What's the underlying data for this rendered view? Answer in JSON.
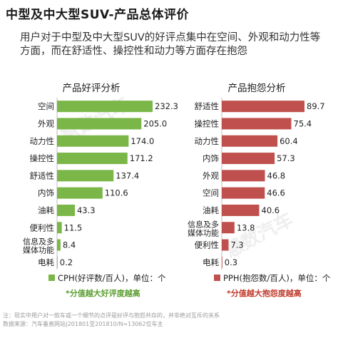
{
  "title": "中型及中大型SUV-产品总体评价",
  "subtitle": "用户对于中型及中大型SUV的好评点集中在空间、外观和动力性等方面，而在舒适性、操控性和动力等方面存在抱怨",
  "watermark": "慧数汽车",
  "footer": {
    "note": "注：现实中用户对一款车或一个细节的点评是好评与抱怨共存的，并非绝对互斥的关系",
    "source": "数据来源：汽车垂直网站|201801至201810/N=13062位车主"
  },
  "colors": {
    "praise": "#7ab648",
    "complaint": "#c0504d",
    "praise_note": "#5a9e2f",
    "complaint_note": "#c0392b"
  },
  "chart_data": [
    {
      "type": "bar",
      "orientation": "horizontal",
      "title": "产品好评分析",
      "categories": [
        "空间",
        "外观",
        "动力性",
        "操控性",
        "舒适性",
        "内饰",
        "油耗",
        "便利性",
        "信息及多媒体功能",
        "电耗"
      ],
      "values": [
        232.3,
        205.0,
        174.0,
        171.2,
        137.4,
        110.6,
        43.3,
        11.5,
        8.4,
        0.2
      ],
      "value_labels": [
        "232.3",
        "205.0",
        "174.0",
        "171.2",
        "137.4",
        "110.6",
        "43.3",
        "11.5",
        "8.4",
        "0.2"
      ],
      "xlim": [
        0,
        232.3
      ],
      "legend": "CPH(好评数/百人)，单位：个",
      "note": "*分值越大好评度越高",
      "color": "#7ab648"
    },
    {
      "type": "bar",
      "orientation": "horizontal",
      "title": "产品抱怨分析",
      "categories": [
        "舒适性",
        "操控性",
        "动力性",
        "内饰",
        "外观",
        "空间",
        "油耗",
        "信息及多媒体功能",
        "便利性",
        "电耗"
      ],
      "values": [
        89.7,
        75.4,
        60.4,
        57.3,
        46.8,
        46.6,
        40.6,
        13.8,
        7.3,
        0.3
      ],
      "value_labels": [
        "89.7",
        "75.4",
        "60.4",
        "57.3",
        "46.8",
        "46.6",
        "40.6",
        "13.8",
        "7.3",
        "0.3"
      ],
      "xlim": [
        0,
        89.7
      ],
      "legend": "PPH(抱怨数/百人)，单位：个",
      "note": "*分值越大抱怨度越高",
      "color": "#c0504d"
    }
  ]
}
